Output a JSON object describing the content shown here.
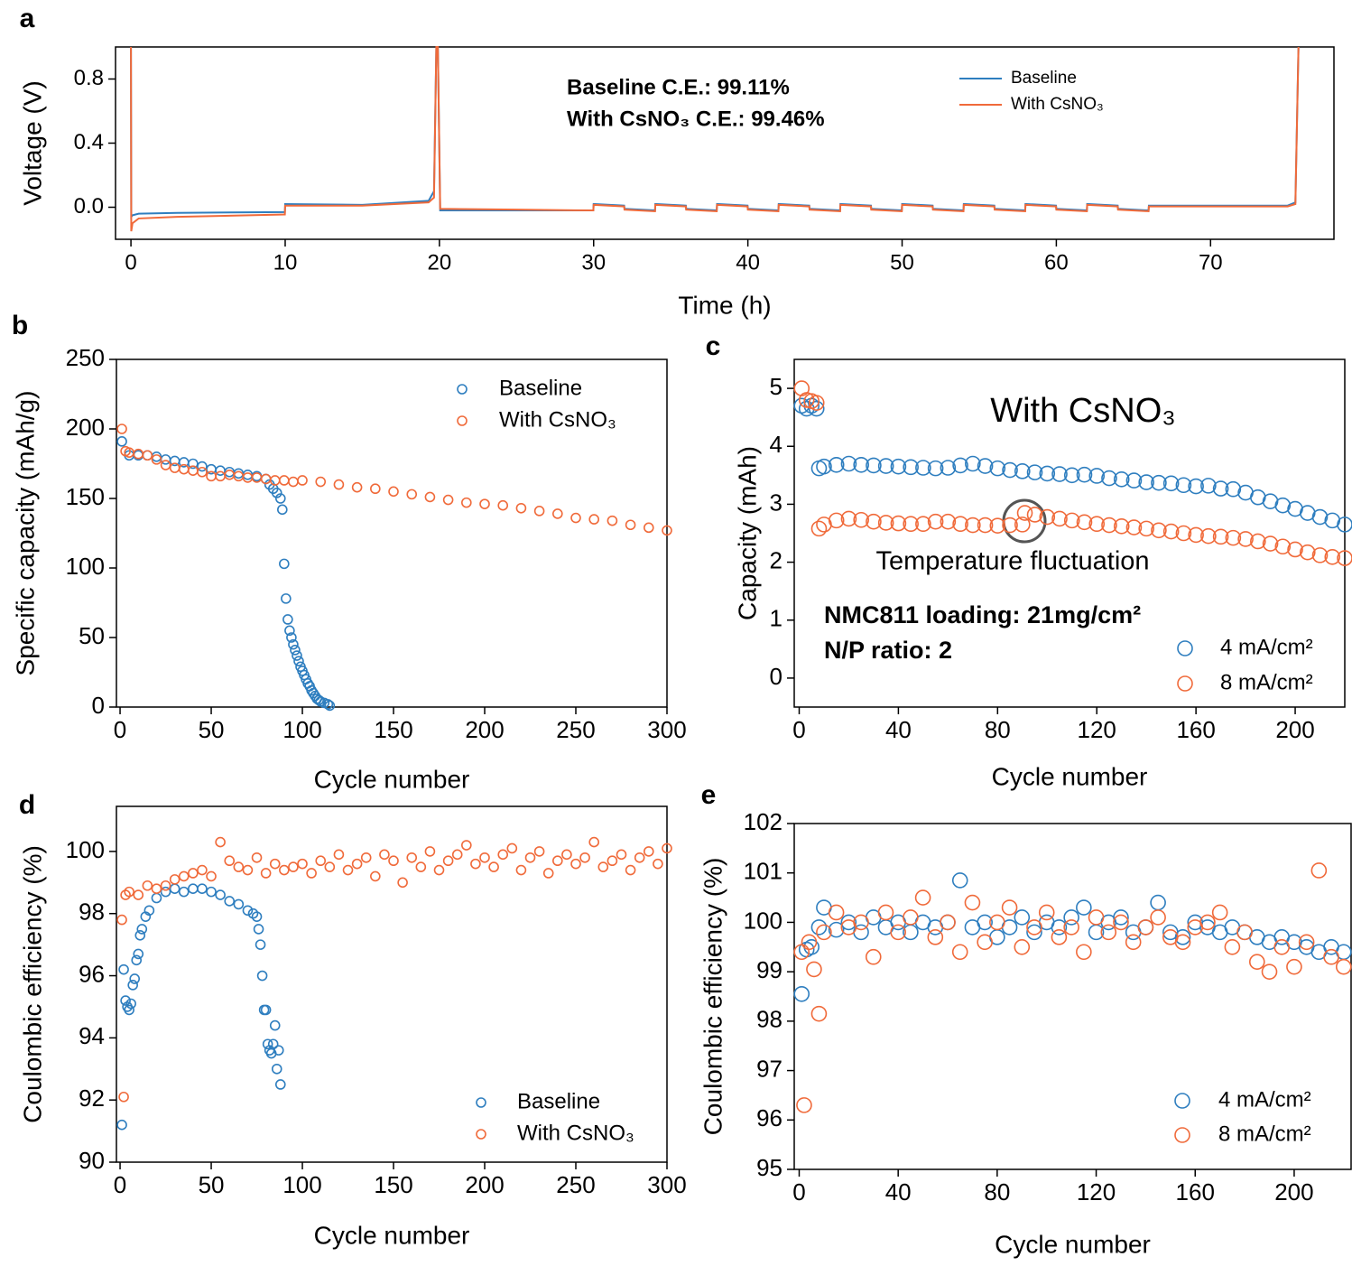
{
  "chart_data": [
    {
      "panel": "a",
      "type": "line",
      "xlabel": "Time (h)",
      "ylabel": "Voltage (V)",
      "xlim": [
        -1,
        78
      ],
      "ylim": [
        -0.2,
        1.0
      ],
      "xticks": [
        0,
        10,
        20,
        30,
        40,
        50,
        60,
        70
      ],
      "yticks": [
        {
          "value": 0,
          "label": "0.0"
        },
        0.4,
        0.8
      ],
      "annotations": [
        "Baseline C.E.: 99.11%",
        "With CsNO₃ C.E.: 99.46%"
      ],
      "x": [
        0,
        0.02,
        0.1,
        0.5,
        3,
        9.98,
        10,
        15,
        19.3,
        19.65,
        19.8,
        19.9,
        20.05,
        25,
        29.98,
        30,
        31.98,
        32,
        33.98,
        34,
        35.98,
        36,
        37.98,
        38,
        39.98,
        40,
        41.98,
        42,
        43.98,
        44,
        45.98,
        46,
        47.98,
        48,
        49.98,
        50,
        51.98,
        52,
        53.98,
        54,
        55.98,
        56,
        57.98,
        58,
        59.98,
        60,
        61.98,
        62,
        63.98,
        64,
        65.98,
        66,
        75,
        75.5,
        75.7
      ],
      "series": [
        {
          "name": "Baseline",
          "color": "#2e7ebf",
          "values": [
            1.0,
            -0.06,
            -0.05,
            -0.04,
            -0.035,
            -0.03,
            0.02,
            0.015,
            0.04,
            0.1,
            1.0,
            1.0,
            -0.02,
            -0.02,
            -0.02,
            0.02,
            0.01,
            -0.01,
            -0.02,
            0.02,
            0.01,
            -0.01,
            -0.02,
            0.02,
            0.01,
            -0.01,
            -0.02,
            0.02,
            0.01,
            -0.01,
            -0.02,
            0.02,
            0.01,
            -0.01,
            -0.02,
            0.02,
            0.01,
            -0.01,
            -0.02,
            0.02,
            0.01,
            -0.01,
            -0.02,
            0.02,
            0.01,
            -0.01,
            -0.02,
            0.02,
            0.01,
            -0.01,
            -0.02,
            0.01,
            0.01,
            0.03,
            1.0
          ]
        },
        {
          "name": "With CsNO₃",
          "color": "#f06a3a",
          "values": [
            1.0,
            -0.15,
            -0.1,
            -0.07,
            -0.06,
            -0.045,
            0.01,
            0.01,
            0.03,
            0.06,
            1.0,
            1.0,
            -0.01,
            -0.015,
            -0.02,
            0.015,
            0.005,
            -0.015,
            -0.025,
            0.015,
            0.005,
            -0.015,
            -0.025,
            0.015,
            0.005,
            -0.015,
            -0.025,
            0.015,
            0.005,
            -0.015,
            -0.025,
            0.015,
            0.005,
            -0.015,
            -0.025,
            0.015,
            0.005,
            -0.015,
            -0.025,
            0.015,
            0.005,
            -0.015,
            -0.025,
            0.015,
            0.005,
            -0.015,
            -0.025,
            0.015,
            0.005,
            -0.015,
            -0.025,
            0.005,
            0.005,
            0.02,
            1.0
          ]
        }
      ]
    },
    {
      "panel": "b",
      "type": "scatter",
      "xlabel": "Cycle number",
      "ylabel": "Specific capacity (mAh/g)",
      "xlim": [
        -2,
        300
      ],
      "ylim": [
        0,
        250
      ],
      "xticks": [
        0,
        50,
        100,
        150,
        200,
        250,
        300
      ],
      "yticks": [
        0,
        50,
        100,
        150,
        200,
        250
      ],
      "series": [
        {
          "name": "Baseline",
          "color": "#2e7ebf",
          "x": [
            1,
            5,
            10,
            15,
            20,
            25,
            30,
            35,
            40,
            45,
            50,
            55,
            60,
            65,
            70,
            75,
            80,
            82,
            84,
            86,
            88,
            89,
            90,
            91,
            92,
            93,
            94,
            95,
            96,
            97,
            98,
            99,
            100,
            101,
            102,
            103,
            104,
            105,
            106,
            107,
            108,
            109,
            110,
            112,
            114,
            115
          ],
          "values": [
            191,
            181,
            181,
            181,
            180,
            178,
            177,
            176,
            175,
            173,
            171,
            170,
            169,
            168,
            167,
            166,
            164,
            160,
            157,
            154,
            150,
            142,
            103,
            78,
            63,
            55,
            50,
            45,
            41,
            37,
            33,
            29,
            26,
            23,
            20,
            17,
            15,
            12,
            10,
            8,
            6,
            5,
            4,
            3,
            2,
            1
          ]
        },
        {
          "name": "With CsNO₃",
          "color": "#f06a3a",
          "x": [
            1,
            3,
            5,
            10,
            15,
            20,
            25,
            30,
            35,
            40,
            45,
            50,
            55,
            60,
            65,
            70,
            75,
            80,
            85,
            90,
            95,
            100,
            110,
            120,
            130,
            140,
            150,
            160,
            170,
            180,
            190,
            200,
            210,
            220,
            230,
            240,
            250,
            260,
            270,
            280,
            290,
            300
          ],
          "values": [
            200,
            184,
            183,
            182,
            181,
            178,
            174,
            172,
            171,
            170,
            169,
            166,
            166,
            167,
            166,
            165,
            165,
            164,
            163,
            163,
            162,
            163,
            162,
            160,
            158,
            157,
            155,
            153,
            151,
            149,
            147,
            146,
            145,
            143,
            141,
            139,
            136,
            135,
            134,
            131,
            129,
            127
          ]
        }
      ]
    },
    {
      "panel": "c",
      "type": "scatter",
      "xlabel": "Cycle number",
      "ylabel": "Capacity (mAh)",
      "xlim": [
        -2,
        220
      ],
      "ylim": [
        -0.5,
        5.5
      ],
      "xticks": [
        0,
        40,
        80,
        120,
        160,
        200
      ],
      "yticks": [
        0,
        1,
        2,
        3,
        4,
        5
      ],
      "annotations": [
        "With CsNO₃",
        "Temperature fluctuation",
        "NMC811 loading: 21mg/cm²",
        "N/P ratio: 2"
      ],
      "series": [
        {
          "name": "4 mA/cm²",
          "color": "#2e7ebf",
          "x": [
            1,
            3,
            5,
            7,
            8,
            10,
            15,
            20,
            25,
            30,
            35,
            40,
            45,
            50,
            55,
            60,
            65,
            70,
            75,
            80,
            85,
            90,
            95,
            100,
            105,
            110,
            115,
            120,
            125,
            130,
            135,
            140,
            145,
            150,
            155,
            160,
            165,
            170,
            175,
            180,
            185,
            190,
            195,
            200,
            205,
            210,
            215,
            220
          ],
          "values": [
            4.7,
            4.65,
            4.7,
            4.65,
            3.62,
            3.65,
            3.68,
            3.7,
            3.68,
            3.67,
            3.66,
            3.65,
            3.64,
            3.63,
            3.62,
            3.63,
            3.67,
            3.7,
            3.66,
            3.62,
            3.59,
            3.57,
            3.55,
            3.53,
            3.52,
            3.5,
            3.51,
            3.49,
            3.45,
            3.43,
            3.41,
            3.38,
            3.37,
            3.36,
            3.33,
            3.31,
            3.32,
            3.27,
            3.26,
            3.2,
            3.12,
            3.05,
            2.98,
            2.92,
            2.85,
            2.78,
            2.72,
            2.65
          ]
        },
        {
          "name": "8 mA/cm²",
          "color": "#f06a3a",
          "x": [
            1,
            3,
            5,
            7,
            8,
            10,
            15,
            20,
            25,
            30,
            35,
            40,
            45,
            50,
            55,
            60,
            65,
            70,
            75,
            80,
            85,
            90,
            91,
            95,
            100,
            105,
            110,
            115,
            120,
            125,
            130,
            135,
            140,
            145,
            150,
            155,
            160,
            165,
            170,
            175,
            180,
            185,
            190,
            195,
            200,
            205,
            210,
            215,
            220
          ],
          "values": [
            5.0,
            4.8,
            4.78,
            4.75,
            2.58,
            2.65,
            2.72,
            2.75,
            2.73,
            2.7,
            2.68,
            2.67,
            2.66,
            2.66,
            2.7,
            2.7,
            2.66,
            2.64,
            2.64,
            2.63,
            2.64,
            2.65,
            2.85,
            2.82,
            2.78,
            2.75,
            2.72,
            2.69,
            2.66,
            2.64,
            2.62,
            2.6,
            2.58,
            2.55,
            2.53,
            2.5,
            2.47,
            2.45,
            2.44,
            2.42,
            2.4,
            2.36,
            2.32,
            2.27,
            2.22,
            2.17,
            2.12,
            2.09,
            2.07
          ]
        }
      ]
    },
    {
      "panel": "d",
      "type": "scatter",
      "xlabel": "Cycle number",
      "ylabel": "Coulombic efficiency (%)",
      "xlim": [
        -2,
        300
      ],
      "ylim": [
        90,
        101.45
      ],
      "xticks": [
        0,
        50,
        100,
        150,
        200,
        250,
        300
      ],
      "yticks": [
        90,
        92,
        94,
        96,
        98,
        100
      ],
      "series": [
        {
          "name": "Baseline",
          "color": "#2e7ebf",
          "x": [
            1,
            2,
            3,
            4,
            5,
            6,
            7,
            8,
            9,
            10,
            11,
            12,
            14,
            16,
            20,
            25,
            30,
            35,
            40,
            45,
            50,
            55,
            60,
            65,
            70,
            73,
            75,
            76,
            77,
            78,
            79,
            80,
            81,
            82,
            83,
            84,
            85,
            86,
            87,
            88
          ],
          "values": [
            91.2,
            96.2,
            95.2,
            95.0,
            94.9,
            95.1,
            95.7,
            95.9,
            96.5,
            96.7,
            97.3,
            97.5,
            97.9,
            98.1,
            98.5,
            98.7,
            98.8,
            98.7,
            98.8,
            98.8,
            98.7,
            98.6,
            98.4,
            98.3,
            98.1,
            98.0,
            97.9,
            97.5,
            97.0,
            96.0,
            94.9,
            94.9,
            93.8,
            93.6,
            93.5,
            93.8,
            94.4,
            93.0,
            93.6,
            92.5
          ]
        },
        {
          "name": "With CsNO₃",
          "color": "#f06a3a",
          "x": [
            1,
            2,
            3,
            5,
            10,
            15,
            20,
            25,
            30,
            35,
            40,
            45,
            50,
            55,
            60,
            65,
            70,
            75,
            80,
            85,
            90,
            95,
            100,
            105,
            110,
            115,
            120,
            125,
            130,
            135,
            140,
            145,
            150,
            155,
            160,
            165,
            170,
            175,
            180,
            185,
            190,
            195,
            200,
            205,
            210,
            215,
            220,
            225,
            230,
            235,
            240,
            245,
            250,
            255,
            260,
            265,
            270,
            275,
            280,
            285,
            290,
            295,
            300
          ],
          "values": [
            97.8,
            92.1,
            98.6,
            98.7,
            98.6,
            98.9,
            98.8,
            98.9,
            99.1,
            99.2,
            99.3,
            99.4,
            99.2,
            100.3,
            99.7,
            99.5,
            99.4,
            99.8,
            99.3,
            99.6,
            99.4,
            99.5,
            99.6,
            99.3,
            99.7,
            99.5,
            99.9,
            99.4,
            99.6,
            99.8,
            99.2,
            99.9,
            99.7,
            99.0,
            99.8,
            99.5,
            100.0,
            99.4,
            99.7,
            99.9,
            100.2,
            99.6,
            99.8,
            99.5,
            99.9,
            100.1,
            99.4,
            99.8,
            100.0,
            99.3,
            99.7,
            99.9,
            99.6,
            99.8,
            100.3,
            99.5,
            99.7,
            99.9,
            99.4,
            99.8,
            100.0,
            99.6,
            100.1
          ]
        }
      ]
    },
    {
      "panel": "e",
      "type": "scatter",
      "xlabel": "Cycle number",
      "ylabel": "Coulombic efficiency (%)",
      "xlim": [
        -2,
        223
      ],
      "ylim": [
        95,
        102
      ],
      "xticks": [
        0,
        40,
        80,
        120,
        160,
        200
      ],
      "yticks": [
        95,
        96,
        97,
        98,
        99,
        100,
        101,
        102
      ],
      "series": [
        {
          "name": "4 mA/cm²",
          "color": "#2e7ebf",
          "x": [
            1,
            3,
            5,
            8,
            10,
            15,
            20,
            25,
            30,
            35,
            40,
            45,
            50,
            55,
            60,
            65,
            70,
            75,
            80,
            85,
            90,
            95,
            100,
            105,
            110,
            115,
            120,
            125,
            130,
            135,
            140,
            145,
            150,
            155,
            160,
            165,
            170,
            175,
            180,
            185,
            190,
            195,
            200,
            205,
            210,
            215,
            220
          ],
          "values": [
            98.55,
            99.45,
            99.5,
            99.9,
            100.3,
            99.85,
            100.0,
            99.8,
            100.1,
            99.9,
            100.0,
            99.8,
            100.0,
            99.9,
            100.0,
            100.85,
            99.9,
            100.0,
            99.7,
            99.9,
            100.1,
            99.8,
            100.0,
            99.9,
            100.1,
            100.3,
            99.8,
            100.0,
            100.1,
            99.8,
            99.9,
            100.4,
            99.8,
            99.7,
            100.0,
            99.9,
            99.8,
            99.9,
            99.8,
            99.7,
            99.6,
            99.7,
            99.6,
            99.5,
            99.4,
            99.5,
            99.4
          ]
        },
        {
          "name": "8 mA/cm²",
          "color": "#f06a3a",
          "x": [
            1,
            2,
            4,
            6,
            8,
            10,
            15,
            20,
            25,
            30,
            35,
            40,
            45,
            50,
            55,
            60,
            65,
            70,
            75,
            80,
            85,
            90,
            95,
            100,
            105,
            110,
            115,
            120,
            125,
            130,
            135,
            140,
            145,
            150,
            155,
            160,
            165,
            170,
            175,
            180,
            185,
            190,
            195,
            200,
            205,
            210,
            215,
            220
          ],
          "values": [
            99.4,
            96.3,
            99.6,
            99.05,
            98.15,
            99.8,
            100.2,
            99.9,
            100.0,
            99.3,
            100.2,
            99.8,
            100.1,
            100.5,
            99.7,
            100.0,
            99.4,
            100.4,
            99.6,
            100.0,
            100.3,
            99.5,
            99.9,
            100.2,
            99.7,
            99.9,
            99.4,
            100.1,
            99.8,
            100.0,
            99.6,
            99.9,
            100.1,
            99.7,
            99.6,
            99.9,
            100.0,
            100.2,
            99.5,
            99.8,
            99.2,
            99.0,
            99.5,
            99.1,
            99.6,
            101.05,
            99.3,
            99.1
          ]
        }
      ]
    }
  ]
}
